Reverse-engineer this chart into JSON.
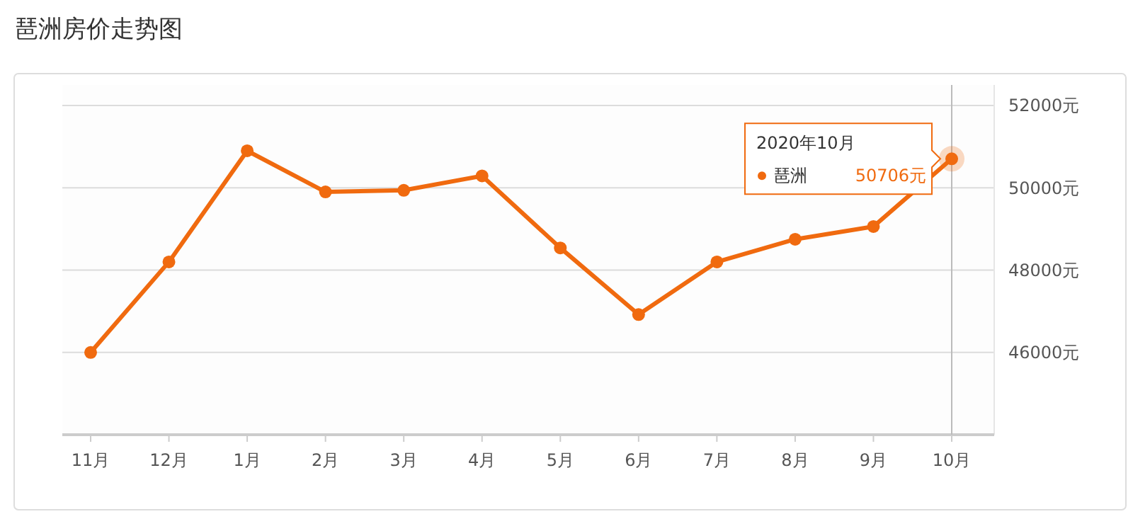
{
  "chart_data": {
    "type": "line",
    "title": "琶洲房价走势图",
    "categories": [
      "11月",
      "12月",
      "1月",
      "2月",
      "3月",
      "4月",
      "5月",
      "6月",
      "7月",
      "8月",
      "9月",
      "10月"
    ],
    "series": [
      {
        "name": "琶洲",
        "color": "#f06a0f",
        "values": [
          46000,
          48200,
          50900,
          49900,
          49940,
          50290,
          48540,
          46920,
          48200,
          48750,
          49060,
          50706
        ],
        "value_labels": [
          null,
          null,
          null,
          null,
          null,
          null,
          null,
          null,
          null,
          null,
          null,
          "50706元"
        ]
      }
    ],
    "ylim": [
      44000,
      52500
    ],
    "yticks": [
      {
        "value": 46000,
        "label": "46000元"
      },
      {
        "value": 48000,
        "label": "48000元"
      },
      {
        "value": 50000,
        "label": "50000元"
      },
      {
        "value": 52000,
        "label": "52000元"
      }
    ],
    "grid": "y",
    "marker": "circle",
    "line_style": "solid",
    "legend": "top right",
    "ref_lines": [
      {
        "axis": "x",
        "value": "10月",
        "color": "#bbbbbb"
      }
    ],
    "annotations": [
      "2020年10月"
    ]
  }
}
